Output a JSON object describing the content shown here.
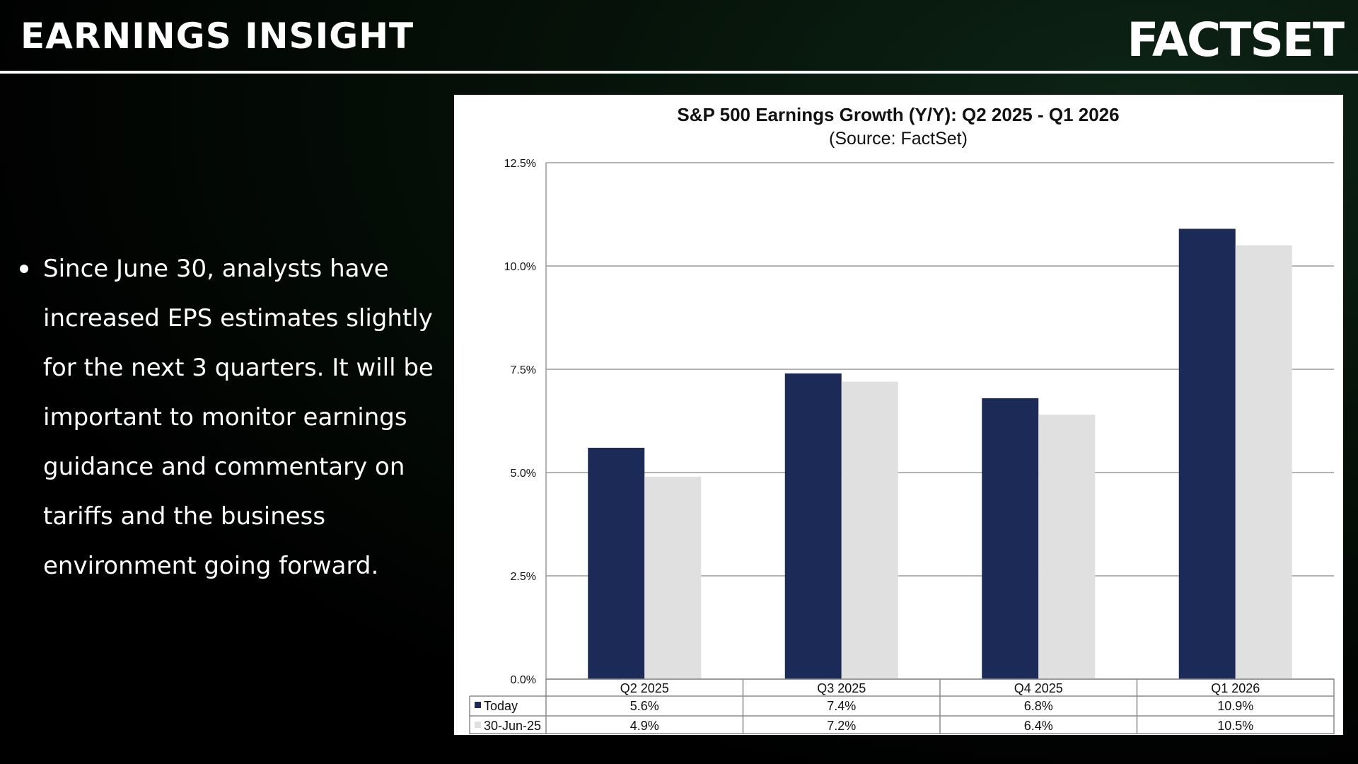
{
  "header": {
    "title": "EARNINGS INSIGHT",
    "logo_text": "FACTSET"
  },
  "body": {
    "bullet": "Since June 30, analysts have increased EPS estimates slightly for the next 3 quarters. It will be important to monitor earnings guidance and commentary on tariffs and the business environment going forward."
  },
  "colors": {
    "today": "#1b2a56",
    "prior": "#e0e0e0"
  },
  "chart_data": {
    "type": "bar",
    "title": "S&P 500 Earnings Growth (Y/Y): Q2 2025 - Q1 2026",
    "subtitle": "(Source: FactSet)",
    "categories": [
      "Q2 2025",
      "Q3 2025",
      "Q4 2025",
      "Q1 2026"
    ],
    "series": [
      {
        "name": "Today",
        "values": [
          5.6,
          7.4,
          6.8,
          10.9
        ],
        "labels": [
          "5.6%",
          "7.4%",
          "6.8%",
          "10.9%"
        ]
      },
      {
        "name": "30-Jun-25",
        "values": [
          4.9,
          7.2,
          6.4,
          10.5
        ],
        "labels": [
          "4.9%",
          "7.2%",
          "6.4%",
          "10.5%"
        ]
      }
    ],
    "ylim": [
      0,
      12.5
    ],
    "yticks": [
      "0.0%",
      "2.5%",
      "5.0%",
      "7.5%",
      "10.0%",
      "12.5%"
    ],
    "grid": true,
    "legend": "data-table"
  }
}
